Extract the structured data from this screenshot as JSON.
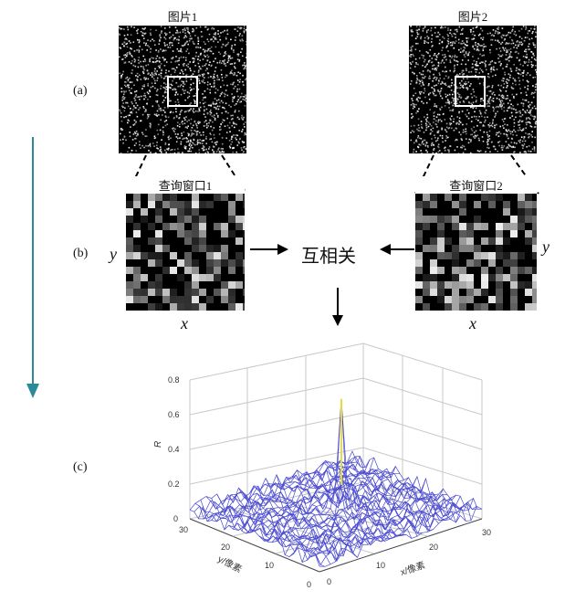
{
  "panel_a": {
    "label": "(a)",
    "image1_caption": "图片1",
    "image2_caption": "图片2"
  },
  "panel_b": {
    "label": "(b)",
    "window1_caption": "查询窗口1",
    "window2_caption": "查询窗口2",
    "center_text": "互相关",
    "x_axis_left": "x",
    "y_axis_left": "y",
    "x_axis_right": "x",
    "y_axis_right": "y"
  },
  "panel_c": {
    "label": "(c)",
    "z_axis_label": "R",
    "x_axis_label": "x/像素",
    "y_axis_label": "y/像素",
    "z_ticks": [
      "0",
      "0.2",
      "0.4",
      "0.6",
      "0.8"
    ],
    "x_ticks": [
      "0",
      "10",
      "20",
      "30"
    ],
    "y_ticks": [
      "0",
      "10",
      "20",
      "30"
    ]
  },
  "colors": {
    "flow_arrow": "#2a8a99",
    "mesh_low": "#4a4ad0",
    "mesh_high": "#e6dc3a",
    "box": "#ffffff"
  }
}
